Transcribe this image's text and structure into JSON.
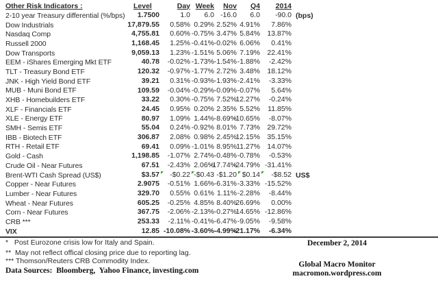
{
  "table": {
    "title": "Other Risk Indicators :",
    "headers": [
      "Level",
      "Day",
      "Week",
      "Nov",
      "Q4",
      "2014"
    ],
    "rows": [
      {
        "label": "2-10 year Treasury differential (%/bps)",
        "level": "1.7500",
        "day": "1.0",
        "week": "6.0",
        "nov": "-16.0",
        "q4": "6.0",
        "y2014": "-90.0",
        "unit": "(bps)"
      },
      {
        "label": "Dow Industrials",
        "level": "17,879.55",
        "day": "0.58%",
        "week": "0.29%",
        "nov": "2.52%",
        "q4": "4.91%",
        "y2014": "7.86%"
      },
      {
        "label": "Nasdaq Comp",
        "level": "4,755.81",
        "day": "0.60%",
        "week": "-0.75%",
        "nov": "3.47%",
        "q4": "5.84%",
        "y2014": "13.87%"
      },
      {
        "label": "Russell 2000",
        "level": "1,168.45",
        "day": "1.25%",
        "week": "-0.41%",
        "nov": "-0.02%",
        "q4": "6.06%",
        "y2014": "0.41%"
      },
      {
        "label": "Dow Transports",
        "level": "9,059.13",
        "day": "1.23%",
        "week": "-1.51%",
        "nov": "5.06%",
        "q4": "7.19%",
        "y2014": "22.41%"
      },
      {
        "label": "EEM - iShares Emerging Mkt ETF",
        "level": "40.78",
        "day": "-0.02%",
        "week": "-1.73%",
        "nov": "-1.54%",
        "q4": "-1.88%",
        "y2014": "-2.42%"
      },
      {
        "label": "TLT - Treasury Bond ETF",
        "level": "120.32",
        "day": "-0.97%",
        "week": "-1.77%",
        "nov": "2.72%",
        "q4": "3.48%",
        "y2014": "18.12%"
      },
      {
        "label": "JNK - High Yield Bond ETF",
        "level": "39.21",
        "day": "0.31%",
        "week": "-0.93%",
        "nov": "-1.93%",
        "q4": "-2.41%",
        "y2014": "-3.33%"
      },
      {
        "label": "MUB - Muni Bond ETF",
        "level": "109.59",
        "day": "-0.04%",
        "week": "-0.29%",
        "nov": "-0.09%",
        "q4": "-0.07%",
        "y2014": "5.64%"
      },
      {
        "label": "XHB - Homebuilders ETF",
        "level": "33.22",
        "day": "0.30%",
        "week": "-0.75%",
        "nov": "7.52%",
        "q4": "12.27%",
        "y2014": "-0.24%"
      },
      {
        "label": "XLF - Financials ETF",
        "level": "24.45",
        "day": "0.95%",
        "week": "0.20%",
        "nov": "2.35%",
        "q4": "5.52%",
        "y2014": "11.85%"
      },
      {
        "label": "XLE - Energy ETF",
        "level": "80.97",
        "day": "1.09%",
        "week": "1.44%",
        "nov": "-8.69%",
        "q4": "-10.65%",
        "y2014": "-8.07%"
      },
      {
        "label": "SMH - Semis ETF",
        "level": "55.04",
        "day": "0.24%",
        "week": "-0.92%",
        "nov": "8.01%",
        "q4": "7.73%",
        "y2014": "29.72%"
      },
      {
        "label": "IBB - Biotech ETF",
        "level": "306.87",
        "day": "2.08%",
        "week": "0.98%",
        "nov": "2.45%",
        "q4": "12.15%",
        "y2014": "35.15%"
      },
      {
        "label": "RTH - Retail ETF",
        "level": "69.41",
        "day": "0.09%",
        "week": "-1.01%",
        "nov": "8.95%",
        "q4": "11.27%",
        "y2014": "14.07%"
      },
      {
        "label": "Gold - Cash",
        "level": "1,198.85",
        "day": "-1.07%",
        "week": "2.74%",
        "nov": "-0.48%",
        "q4": "-0.78%",
        "y2014": "-0.53%"
      },
      {
        "label": "Crude Oil - Near Futures",
        "level": "67.51",
        "day": "-2.43%",
        "week": "2.06%",
        "nov": "-17.74%",
        "q4": "-24.79%",
        "y2014": "-31.41%"
      },
      {
        "label": "Brent-WTI Cash Spread (US$)",
        "level": "$3.57",
        "day": "-$0.22",
        "week": "-$0.43",
        "nov": "-$1.20",
        "q4": "$0.14",
        "y2014": "-$8.52",
        "unit": "US$",
        "flags": [
          "day",
          "week",
          "q4",
          "y2014"
        ]
      },
      {
        "label": "Copper - Near Futures",
        "level": "2.9075",
        "day": "-0.51%",
        "week": "1.66%",
        "nov": "-6.31%",
        "q4": "-3.33%",
        "y2014": "-15.52%"
      },
      {
        "label": "Lumber - Near Futures",
        "level": "329.70",
        "day": "0.55%",
        "week": "0.61%",
        "nov": "1.11%",
        "q4": "-2.28%",
        "y2014": "-8.44%"
      },
      {
        "label": "Wheat - Near Futures",
        "level": "605.25",
        "day": "-0.25%",
        "week": "4.85%",
        "nov": "8.40%",
        "q4": "26.69%",
        "y2014": "0.00%"
      },
      {
        "label": "Corn - Near Futures",
        "level": "367.75",
        "day": "-2.06%",
        "week": "-2.13%",
        "nov": "-0.27%",
        "q4": "14.65%",
        "y2014": "-12.86%"
      },
      {
        "label": "CRB ***",
        "level": "253.33",
        "day": "-2.11%",
        "week": "-0.41%",
        "nov": "-6.47%",
        "q4": "-9.05%",
        "y2014": "-9.58%"
      },
      {
        "label": "VIX",
        "level": "12.85",
        "day": "-10.08%",
        "week": "-3.60%",
        "nov": "-4.99%",
        "q4": "-21.17%",
        "y2014": "-6.34%",
        "bold": true
      }
    ]
  },
  "footnotes": [
    "*   Post Eurozone crisis low for Italy and Spain.",
    "**  May not reflect offical closing price due to reporting lag.",
    "*** Thomson/Reuters CRB Commodity Index."
  ],
  "data_sources": "Data Sources:  Bloomberg,  Yahoo Finance, investing.com",
  "date": "December 2, 2014",
  "brand": {
    "name": "Global Macro Monitor",
    "site": "macromon.wordpress.com"
  },
  "colors": {
    "text": "#2b2b2b",
    "serif_text": "#111111",
    "flag_green": "#2da32d",
    "rule": "#3a3a3a",
    "background": "#ffffff"
  }
}
